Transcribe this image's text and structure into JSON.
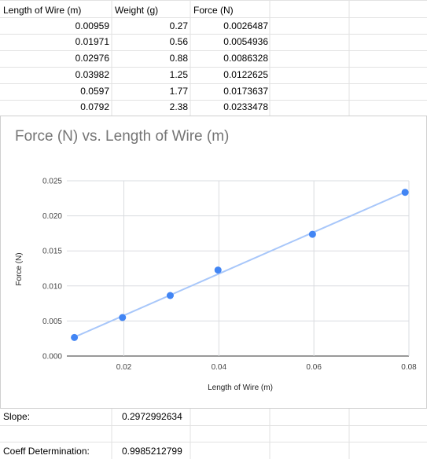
{
  "table": {
    "headers": [
      "Length of Wire (m)",
      "Weight (g)",
      "Force (N)"
    ],
    "rows": [
      [
        "0.00959",
        "0.27",
        "0.0026487"
      ],
      [
        "0.01971",
        "0.56",
        "0.0054936"
      ],
      [
        "0.02976",
        "0.88",
        "0.0086328"
      ],
      [
        "0.03982",
        "1.25",
        "0.0122625"
      ],
      [
        "0.0597",
        "1.77",
        "0.0173637"
      ],
      [
        "0.0792",
        "2.38",
        "0.0233478"
      ]
    ]
  },
  "summary": {
    "slope_label": "Slope:",
    "slope_value": "0.2972992634",
    "coeff_label": "Coeff Determination:",
    "coeff_value": "0.9985212799"
  },
  "chart_data": {
    "type": "scatter",
    "title": "Force (N) vs. Length of Wire (m)",
    "xlabel": "Length of Wire (m)",
    "ylabel": "Force (N)",
    "x": [
      0.00959,
      0.01971,
      0.02976,
      0.03982,
      0.0597,
      0.0792
    ],
    "y": [
      0.0026487,
      0.0054936,
      0.0086328,
      0.0122625,
      0.0173637,
      0.0233478
    ],
    "xlim": [
      0.008,
      0.08
    ],
    "ylim": [
      0,
      0.025
    ],
    "x_ticks": [
      "0.02",
      "0.04",
      "0.06",
      "0.08"
    ],
    "x_tick_values": [
      0.02,
      0.04,
      0.06,
      0.08
    ],
    "y_ticks": [
      "0.000",
      "0.005",
      "0.010",
      "0.015",
      "0.020",
      "0.025"
    ],
    "y_tick_values": [
      0,
      0.005,
      0.01,
      0.015,
      0.02,
      0.025
    ],
    "trendline": true,
    "grid": true,
    "legend": "none",
    "colors": {
      "points": "#4285f4",
      "trendline": "#a8c7fa",
      "grid": "#dadce0"
    }
  }
}
